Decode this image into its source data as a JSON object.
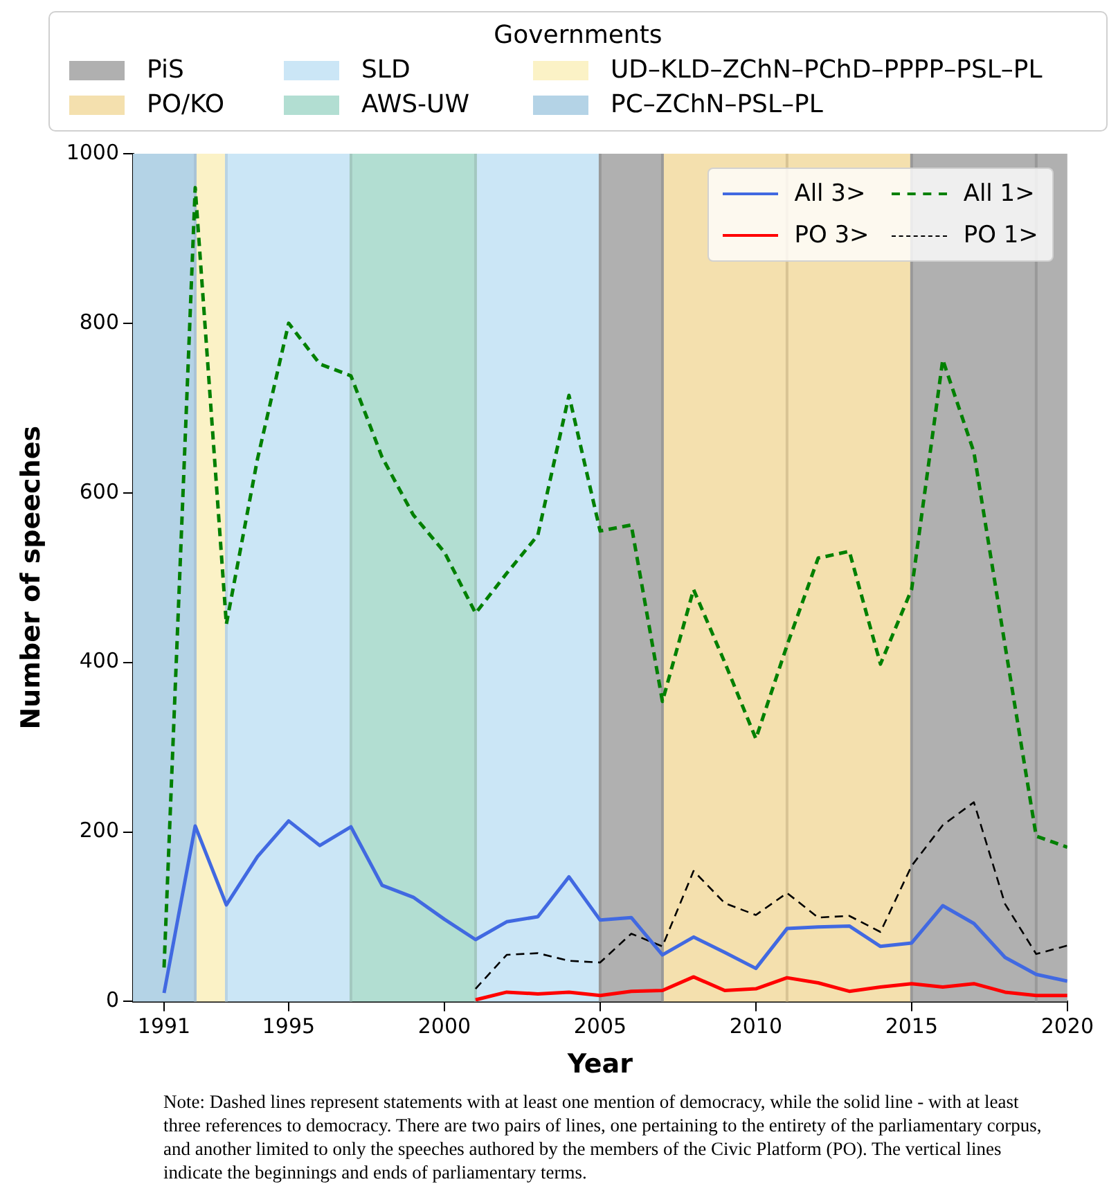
{
  "chart_data": {
    "type": "line",
    "xlabel": "Year",
    "ylabel": "Number of speeches",
    "legend_title": "Governments",
    "legend": "top right",
    "marker": "none",
    "grid": false,
    "xlim": [
      1990,
      2020
    ],
    "xticks": [
      1991,
      1995,
      2000,
      2005,
      2010,
      2015,
      2020
    ],
    "ylim": [
      0,
      1000
    ],
    "yticks": [
      0,
      200,
      400,
      600,
      800,
      1000
    ],
    "series": [
      {
        "name": "All 3>",
        "color": "#4169e1",
        "line_style": "solid",
        "x": [
          1991,
          1992,
          1993,
          1994,
          1995,
          1996,
          1997,
          1998,
          1999,
          2000,
          2001,
          2002,
          2003,
          2004,
          2005,
          2006,
          2007,
          2008,
          2009,
          2010,
          2011,
          2012,
          2013,
          2014,
          2015,
          2016,
          2017,
          2018,
          2019,
          2020
        ],
        "values": [
          10,
          207,
          114,
          171,
          213,
          184,
          206,
          137,
          123,
          97,
          73,
          94,
          100,
          147,
          96,
          99,
          55,
          76,
          58,
          39,
          86,
          88,
          89,
          65,
          69,
          113,
          92,
          52,
          32,
          24
        ]
      },
      {
        "name": "PO 3>",
        "color": "#ff0000",
        "line_style": "solid",
        "x": [
          2001,
          2002,
          2003,
          2004,
          2005,
          2006,
          2007,
          2008,
          2009,
          2010,
          2011,
          2012,
          2013,
          2014,
          2015,
          2016,
          2017,
          2018,
          2019,
          2020
        ],
        "values": [
          2,
          11,
          9,
          11,
          7,
          12,
          13,
          29,
          13,
          15,
          28,
          22,
          12,
          17,
          21,
          17,
          21,
          11,
          7,
          7
        ]
      },
      {
        "name": "All 1>",
        "color": "#008000",
        "line_style": "dashed",
        "x": [
          1991,
          1992,
          1993,
          1994,
          1995,
          1996,
          1997,
          1998,
          1999,
          2000,
          2001,
          2002,
          2003,
          2004,
          2005,
          2006,
          2007,
          2008,
          2009,
          2010,
          2011,
          2012,
          2013,
          2014,
          2015,
          2016,
          2017,
          2018,
          2019,
          2020
        ],
        "values": [
          40,
          960,
          445,
          640,
          800,
          752,
          738,
          642,
          574,
          530,
          458,
          505,
          550,
          715,
          555,
          562,
          354,
          486,
          400,
          310,
          420,
          523,
          531,
          398,
          486,
          757,
          648,
          420,
          195,
          182
        ]
      },
      {
        "name": "PO 1>",
        "color": "#000000",
        "line_style": "dashed",
        "x": [
          2001,
          2002,
          2003,
          2004,
          2005,
          2006,
          2007,
          2008,
          2009,
          2010,
          2011,
          2012,
          2013,
          2014,
          2015,
          2016,
          2017,
          2018,
          2019,
          2020
        ],
        "values": [
          15,
          55,
          57,
          48,
          46,
          80,
          65,
          154,
          116,
          102,
          128,
          99,
          101,
          82,
          160,
          208,
          235,
          115,
          56,
          66
        ]
      }
    ],
    "bands": [
      {
        "axis": "x",
        "from": 2005,
        "to": 2007,
        "label": "PiS",
        "color": "#b0b0b0"
      },
      {
        "axis": "x",
        "from": 2015,
        "to": 2020,
        "color": "#b0b0b0"
      },
      {
        "axis": "x",
        "from": 2007,
        "to": 2015,
        "label": "PO/KO",
        "color": "#f4e0ae"
      },
      {
        "axis": "x",
        "from": 1993,
        "to": 1997,
        "label": "SLD",
        "color": "#cbe6f6"
      },
      {
        "axis": "x",
        "from": 2001,
        "to": 2005,
        "color": "#cbe6f6"
      },
      {
        "axis": "x",
        "from": 1997,
        "to": 2001,
        "label": "AWS-UW",
        "color": "#b2ded2"
      },
      {
        "axis": "x",
        "from": 1992,
        "to": 1993,
        "label": "UD–KLD–ZChN–PChD–PPPP–PSL–PL",
        "color": "#fbf2c6"
      },
      {
        "axis": "x",
        "from": 1990,
        "to": 1992,
        "label": "PC–ZChN–PSL–PL",
        "color": "#b4d3e6"
      }
    ],
    "ref_lines": [
      {
        "axis": "x",
        "value": 1992,
        "color": "#a9c3d6"
      },
      {
        "axis": "x",
        "value": 1993,
        "color": "#b9d3e3"
      },
      {
        "axis": "x",
        "value": 1997,
        "color": "#a3c8c0"
      },
      {
        "axis": "x",
        "value": 2001,
        "color": "#a3c8c0"
      },
      {
        "axis": "x",
        "value": 2005,
        "color": "#999999"
      },
      {
        "axis": "x",
        "value": 2007,
        "color": "#999999"
      },
      {
        "axis": "x",
        "value": 2011,
        "color": "#d9c494"
      },
      {
        "axis": "x",
        "value": 2015,
        "color": "#999999"
      },
      {
        "axis": "x",
        "value": 2019,
        "color": "#999999"
      }
    ],
    "annotations": [
      "Note: Dashed lines represent statements with at least one mention of democracy, while the solid line - with at least three references to democracy. There are two pairs of lines, one pertaining to the entirety of the parliamentary corpus, and another limited to only the speeches authored by the members of the Civic Platform (PO). The vertical lines indicate the beginnings and ends of parliamentary terms."
    ]
  }
}
